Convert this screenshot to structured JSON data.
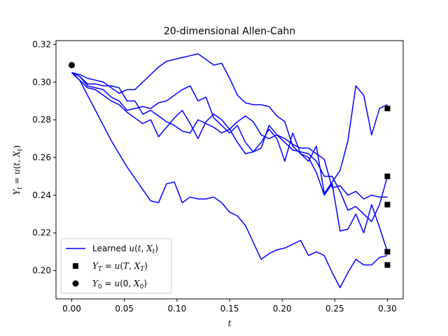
{
  "chart_data": {
    "type": "line",
    "title": "20-dimensional Allen-Cahn",
    "xlabel": "t",
    "ylabel": "Y_t = u(t, X_t)",
    "xlim": [
      -0.015,
      0.315
    ],
    "ylim": [
      0.185,
      0.322
    ],
    "xticks": [
      0.0,
      0.05,
      0.1,
      0.15,
      0.2,
      0.25,
      0.3
    ],
    "xtick_labels": [
      "0.00",
      "0.05",
      "0.10",
      "0.15",
      "0.20",
      "0.25",
      "0.30"
    ],
    "yticks": [
      0.2,
      0.22,
      0.24,
      0.26,
      0.28,
      0.3,
      0.32
    ],
    "ytick_labels": [
      "0.20",
      "0.22",
      "0.24",
      "0.26",
      "0.28",
      "0.30",
      "0.32"
    ],
    "legend_position": "lower-left",
    "line_color": "#0000ff",
    "marker_color": "#000000",
    "series": [
      {
        "name": "Learned u(t, X_t)",
        "x": [
          0,
          0.0075,
          0.015,
          0.0225,
          0.03,
          0.0375,
          0.045,
          0.0525,
          0.06,
          0.0675,
          0.075,
          0.0825,
          0.09,
          0.0975,
          0.105,
          0.1125,
          0.12,
          0.1275,
          0.135,
          0.1425,
          0.15,
          0.1575,
          0.165,
          0.1725,
          0.18,
          0.1875,
          0.195,
          0.2025,
          0.21,
          0.2175,
          0.225,
          0.2325,
          0.24,
          0.2475,
          0.255,
          0.2625,
          0.27,
          0.2775,
          0.285,
          0.2925,
          0.3
        ],
        "values": [
          0.305,
          0.303,
          0.299,
          0.299,
          0.298,
          0.298,
          0.297,
          0.29,
          0.29,
          0.283,
          0.285,
          0.282,
          0.279,
          0.277,
          0.274,
          0.273,
          0.28,
          0.278,
          0.276,
          0.273,
          0.275,
          0.279,
          0.282,
          0.279,
          0.272,
          0.27,
          0.272,
          0.27,
          0.267,
          0.265,
          0.265,
          0.262,
          0.259,
          0.244,
          0.245,
          0.24,
          0.242,
          0.238,
          0.24,
          0.239,
          0.239
        ]
      },
      {
        "name": "",
        "x": [
          0,
          0.0075,
          0.015,
          0.0225,
          0.03,
          0.0375,
          0.045,
          0.0525,
          0.06,
          0.0675,
          0.075,
          0.0825,
          0.09,
          0.0975,
          0.105,
          0.1125,
          0.12,
          0.1275,
          0.135,
          0.1425,
          0.15,
          0.1575,
          0.165,
          0.1725,
          0.18,
          0.1875,
          0.195,
          0.2025,
          0.21,
          0.2175,
          0.225,
          0.2325,
          0.24,
          0.2475,
          0.255,
          0.2625,
          0.27,
          0.2775,
          0.285,
          0.2925,
          0.3
        ],
        "values": [
          0.305,
          0.304,
          0.302,
          0.301,
          0.3,
          0.297,
          0.294,
          0.296,
          0.296,
          0.3,
          0.304,
          0.308,
          0.311,
          0.312,
          0.313,
          0.314,
          0.315,
          0.312,
          0.309,
          0.31,
          0.302,
          0.293,
          0.289,
          0.288,
          0.288,
          0.287,
          0.282,
          0.279,
          0.266,
          0.262,
          0.258,
          0.266,
          0.241,
          0.247,
          0.253,
          0.269,
          0.298,
          0.293,
          0.272,
          0.286,
          0.288
        ]
      },
      {
        "name": "",
        "x": [
          0,
          0.0075,
          0.015,
          0.0225,
          0.03,
          0.0375,
          0.045,
          0.0525,
          0.06,
          0.0675,
          0.075,
          0.0825,
          0.09,
          0.0975,
          0.105,
          0.1125,
          0.12,
          0.1275,
          0.135,
          0.1425,
          0.15,
          0.1575,
          0.165,
          0.1725,
          0.18,
          0.1875,
          0.195,
          0.2025,
          0.21,
          0.2175,
          0.225,
          0.2325,
          0.24,
          0.2475,
          0.255,
          0.2625,
          0.27,
          0.2775,
          0.285,
          0.2925,
          0.3
        ],
        "values": [
          0.305,
          0.303,
          0.298,
          0.297,
          0.296,
          0.292,
          0.29,
          0.285,
          0.286,
          0.287,
          0.286,
          0.289,
          0.29,
          0.293,
          0.296,
          0.298,
          0.29,
          0.292,
          0.281,
          0.277,
          0.273,
          0.277,
          0.268,
          0.263,
          0.265,
          0.277,
          0.272,
          0.268,
          0.264,
          0.263,
          0.262,
          0.258,
          0.25,
          0.25,
          0.242,
          0.232,
          0.234,
          0.23,
          0.226,
          0.235,
          0.25
        ]
      },
      {
        "name": "",
        "x": [
          0,
          0.0075,
          0.015,
          0.0225,
          0.03,
          0.0375,
          0.045,
          0.0525,
          0.06,
          0.0675,
          0.075,
          0.0825,
          0.09,
          0.0975,
          0.105,
          0.1125,
          0.12,
          0.1275,
          0.135,
          0.1425,
          0.15,
          0.1575,
          0.165,
          0.1725,
          0.18,
          0.1875,
          0.195,
          0.2025,
          0.21,
          0.2175,
          0.225,
          0.2325,
          0.24,
          0.2475,
          0.255,
          0.2625,
          0.27,
          0.2775,
          0.285,
          0.2925,
          0.3
        ],
        "values": [
          0.305,
          0.301,
          0.297,
          0.296,
          0.293,
          0.29,
          0.288,
          0.284,
          0.281,
          0.278,
          0.28,
          0.271,
          0.276,
          0.281,
          0.285,
          0.278,
          0.27,
          0.279,
          0.283,
          0.28,
          0.275,
          0.268,
          0.262,
          0.263,
          0.268,
          0.275,
          0.27,
          0.258,
          0.273,
          0.262,
          0.26,
          0.252,
          0.24,
          0.246,
          0.221,
          0.222,
          0.23,
          0.22,
          0.235,
          0.223,
          0.21
        ]
      },
      {
        "name": "",
        "x": [
          0,
          0.0075,
          0.015,
          0.0225,
          0.03,
          0.0375,
          0.045,
          0.0525,
          0.06,
          0.0675,
          0.075,
          0.0825,
          0.09,
          0.0975,
          0.105,
          0.1125,
          0.12,
          0.1275,
          0.135,
          0.1425,
          0.15,
          0.1575,
          0.165,
          0.1725,
          0.18,
          0.1875,
          0.195,
          0.2025,
          0.21,
          0.2175,
          0.225,
          0.2325,
          0.24,
          0.2475,
          0.255,
          0.2625,
          0.27,
          0.2775,
          0.285,
          0.2925,
          0.3
        ],
        "values": [
          0.305,
          0.301,
          0.293,
          0.285,
          0.277,
          0.269,
          0.262,
          0.255,
          0.249,
          0.243,
          0.237,
          0.236,
          0.246,
          0.247,
          0.236,
          0.239,
          0.238,
          0.238,
          0.239,
          0.236,
          0.231,
          0.229,
          0.224,
          0.215,
          0.206,
          0.209,
          0.211,
          0.212,
          0.214,
          0.216,
          0.208,
          0.21,
          0.208,
          0.199,
          0.191,
          0.199,
          0.206,
          0.203,
          0.203,
          0.207,
          0.208
        ]
      }
    ],
    "terminal_markers": {
      "name": "Y_T = u(T, X_T)",
      "x": [
        0.3,
        0.3,
        0.3,
        0.3,
        0.3
      ],
      "y": [
        0.286,
        0.25,
        0.235,
        0.21,
        0.203
      ]
    },
    "initial_marker": {
      "name": "Y_0 = u(0, X_0)",
      "x": [
        0.0
      ],
      "y": [
        0.309
      ]
    },
    "legend": [
      {
        "kind": "line",
        "label": "Learned u(t, X_t)"
      },
      {
        "kind": "square",
        "label": "Y_T = u(T, X_T)"
      },
      {
        "kind": "circle",
        "label": "Y_0 = u(0, X_0)"
      }
    ]
  }
}
